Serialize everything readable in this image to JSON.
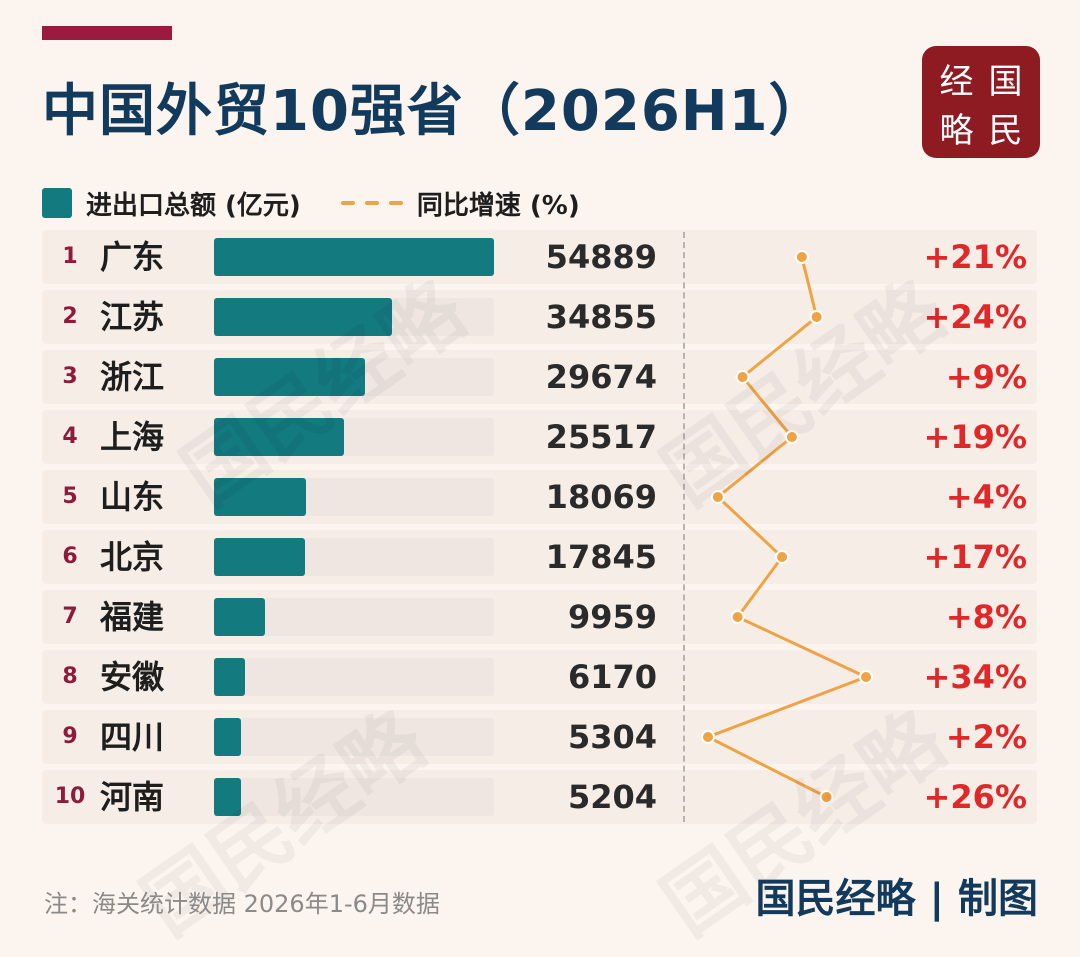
{
  "title": "中国外贸10强省（2026H1）",
  "logo": {
    "chars": [
      "经",
      "国",
      "略",
      "民"
    ]
  },
  "legend": {
    "bar_label": "进出口总额 (亿元)",
    "line_label": "同比增速 (%)"
  },
  "watermark_text": "国民经略",
  "footnote": "注：海关统计数据  2026年1-6月数据",
  "credit": "国民经略 | 制图",
  "colors": {
    "bar": "#137a80",
    "line": "#f0a345",
    "rank": "#8e1b3a",
    "pct": "#e02828",
    "title": "#123a5c",
    "accent": "#9b1b3f",
    "logo_bg": "#8e1b22"
  },
  "chart_data": {
    "type": "bar",
    "categories": [
      "广东",
      "江苏",
      "浙江",
      "上海",
      "山东",
      "北京",
      "福建",
      "安徽",
      "四川",
      "河南"
    ],
    "series": [
      {
        "name": "进出口总额 (亿元)",
        "values": [
          54889,
          34855,
          29674,
          25517,
          18069,
          17845,
          9959,
          6170,
          5304,
          5204
        ]
      },
      {
        "name": "同比增速 (%)",
        "type": "line",
        "values": [
          21,
          24,
          9,
          19,
          4,
          17,
          8,
          34,
          2,
          26
        ]
      }
    ],
    "ranks": [
      "1",
      "2",
      "3",
      "4",
      "5",
      "6",
      "7",
      "8",
      "9",
      "10"
    ],
    "value_labels": [
      "54889",
      "34855",
      "29674",
      "25517",
      "18069",
      "17845",
      "9959",
      "6170",
      "5304",
      "5204"
    ],
    "pct_labels": [
      "+21%",
      "+24%",
      "+9%",
      "+19%",
      "+4%",
      "+17%",
      "+8%",
      "+34%",
      "+2%",
      "+26%"
    ]
  }
}
